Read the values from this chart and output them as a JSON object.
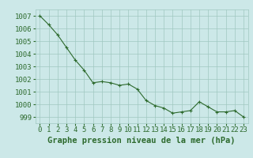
{
  "x": [
    0,
    1,
    2,
    3,
    4,
    5,
    6,
    7,
    8,
    9,
    10,
    11,
    12,
    13,
    14,
    15,
    16,
    17,
    18,
    19,
    20,
    21,
    22,
    23
  ],
  "y": [
    1007.0,
    1006.3,
    1005.5,
    1004.5,
    1003.5,
    1002.7,
    1001.7,
    1001.8,
    1001.7,
    1001.5,
    1001.6,
    1001.2,
    1000.3,
    999.9,
    999.7,
    999.3,
    999.4,
    999.5,
    1000.2,
    999.8,
    999.4,
    999.4,
    999.5,
    999.0
  ],
  "ylim": [
    998.5,
    1007.5
  ],
  "yticks": [
    999,
    1000,
    1001,
    1002,
    1003,
    1004,
    1005,
    1006,
    1007
  ],
  "xlabel": "Graphe pression niveau de la mer (hPa)",
  "line_color": "#2d6a2d",
  "marker_color": "#2d6a2d",
  "bg_color": "#cce8e8",
  "grid_color": "#a0c8c0",
  "label_color": "#2d6a2d",
  "tick_color": "#2d6a2d",
  "xlabel_color": "#2d6a2d",
  "xlabel_fontsize": 7.5,
  "tick_fontsize": 6.5
}
